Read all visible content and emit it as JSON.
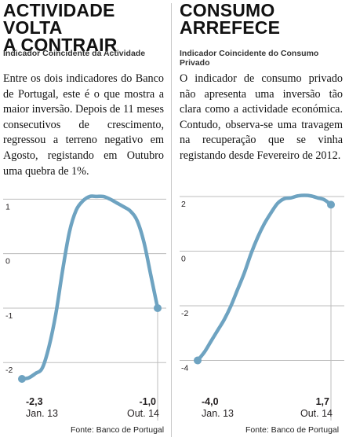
{
  "left": {
    "title_line1": "ACTIVIDADE VOLTA",
    "title_line2": "A CONTRAIR",
    "subtitle": "Indicador Coincidente da Actividade",
    "body": "Entre os dois indicadores do Banco de Portugal, este é o que mostra a maior inversão. Depois de 11 meses consecutivos de crescimento, regressou a terreno negativo em Agosto, registando em Outubro uma quebra de 1%.",
    "source": "Fonte: Banco de Portugal"
  },
  "right": {
    "title_line1": "CONSUMO",
    "title_line2": "ARREFECE",
    "subtitle": "Indicador Coincidente do Consumo Privado",
    "body": "O indicador de consumo privado não apresenta uma inversão tão clara como a actividade económica. Contudo, observa-se uma travagem na recuperação que se vinha registando desde Fevereiro de 2012.",
    "source": "Fonte: Banco de Portugal"
  },
  "colors": {
    "line": "#6ea3c1",
    "grid": "#bdbdbd",
    "text": "#231f20"
  },
  "chart_data": [
    {
      "type": "line",
      "title": "ACTIVIDADE VOLTA A CONTRAIR",
      "ylim": [
        -2.3,
        1.15
      ],
      "yticks": [
        1,
        0,
        -1,
        -2
      ],
      "ytick_labels": [
        "1",
        "0",
        "-1",
        "-2"
      ],
      "x_start_label": "Jan. 13",
      "x_end_label": "Out. 14",
      "start_value_label": "-2,3",
      "end_value_label": "-1,0",
      "series": [
        {
          "values": [
            -2.3,
            -2.28,
            -2.2,
            -2.1,
            -1.7,
            -1.1,
            -0.3,
            0.4,
            0.8,
            0.97,
            1.05,
            1.05,
            1.05,
            1.0,
            0.93,
            0.86,
            0.78,
            0.6,
            0.2,
            -0.4,
            -1.0
          ]
        }
      ]
    },
    {
      "type": "line",
      "title": "CONSUMO ARREFECE",
      "ylim": [
        -4.1,
        2.2
      ],
      "yticks": [
        2,
        0,
        -2,
        -4
      ],
      "ytick_labels": [
        "2",
        "0",
        "-2",
        "-4"
      ],
      "x_start_label": "Jan. 13",
      "x_end_label": "Out. 14",
      "start_value_label": "-4,0",
      "end_value_label": "1,7",
      "series": [
        {
          "values": [
            -4.0,
            -3.7,
            -3.3,
            -2.9,
            -2.5,
            -2.0,
            -1.4,
            -0.8,
            -0.1,
            0.5,
            1.0,
            1.4,
            1.75,
            1.92,
            1.95,
            2.02,
            2.04,
            2.02,
            1.95,
            1.88,
            1.7
          ]
        }
      ]
    }
  ]
}
